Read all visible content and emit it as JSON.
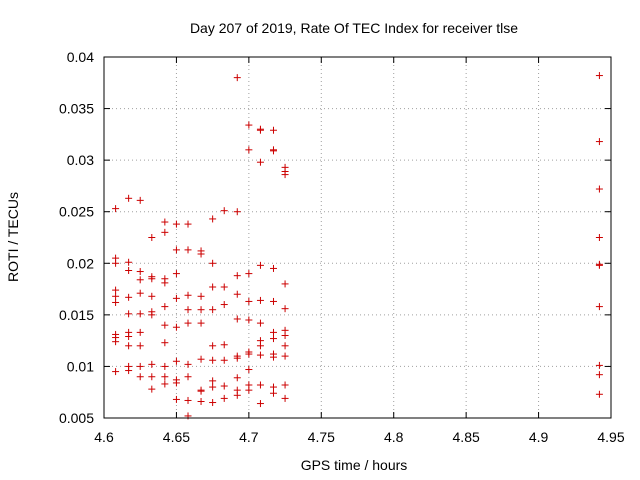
{
  "chart_data": {
    "type": "scatter",
    "title": "Day 207 of 2019, Rate Of TEC Index for receiver tlse",
    "xlabel": "GPS time / hours",
    "ylabel": "ROTI / TECUs",
    "xlim": [
      4.6,
      4.95
    ],
    "ylim": [
      0.005,
      0.04
    ],
    "xticks": [
      4.6,
      4.65,
      4.7,
      4.75,
      4.8,
      4.85,
      4.9,
      4.95
    ],
    "xtick_labels": [
      "4.6",
      "4.65",
      "4.7",
      "4.75",
      "4.8",
      "4.85",
      "4.9",
      "4.95"
    ],
    "yticks": [
      0.005,
      0.01,
      0.015,
      0.02,
      0.025,
      0.03,
      0.035,
      0.04
    ],
    "ytick_labels": [
      "0.005",
      "0.01",
      "0.015",
      "0.02",
      "0.025",
      "0.03",
      "0.035",
      "0.04"
    ],
    "grid": true,
    "marker": "+",
    "marker_color": "#cc0000",
    "series": [
      {
        "name": "ROTI",
        "points": [
          [
            4.608,
            0.0253
          ],
          [
            4.608,
            0.0205
          ],
          [
            4.608,
            0.02
          ],
          [
            4.608,
            0.0174
          ],
          [
            4.608,
            0.0168
          ],
          [
            4.608,
            0.0162
          ],
          [
            4.608,
            0.0131
          ],
          [
            4.608,
            0.0128
          ],
          [
            4.608,
            0.0124
          ],
          [
            4.608,
            0.0095
          ],
          [
            4.617,
            0.0263
          ],
          [
            4.617,
            0.0201
          ],
          [
            4.617,
            0.0193
          ],
          [
            4.617,
            0.0167
          ],
          [
            4.617,
            0.0151
          ],
          [
            4.617,
            0.0133
          ],
          [
            4.617,
            0.0129
          ],
          [
            4.617,
            0.012
          ],
          [
            4.617,
            0.01
          ],
          [
            4.617,
            0.0096
          ],
          [
            4.625,
            0.0261
          ],
          [
            4.625,
            0.0192
          ],
          [
            4.625,
            0.0184
          ],
          [
            4.625,
            0.0171
          ],
          [
            4.625,
            0.0151
          ],
          [
            4.625,
            0.0133
          ],
          [
            4.625,
            0.012
          ],
          [
            4.625,
            0.01
          ],
          [
            4.625,
            0.009
          ],
          [
            4.633,
            0.0225
          ],
          [
            4.633,
            0.0187
          ],
          [
            4.633,
            0.0185
          ],
          [
            4.633,
            0.0168
          ],
          [
            4.633,
            0.0153
          ],
          [
            4.633,
            0.015
          ],
          [
            4.633,
            0.0102
          ],
          [
            4.633,
            0.009
          ],
          [
            4.633,
            0.0078
          ],
          [
            4.642,
            0.024
          ],
          [
            4.642,
            0.023
          ],
          [
            4.642,
            0.0185
          ],
          [
            4.642,
            0.0181
          ],
          [
            4.642,
            0.0158
          ],
          [
            4.642,
            0.014
          ],
          [
            4.642,
            0.0123
          ],
          [
            4.642,
            0.01
          ],
          [
            4.642,
            0.009
          ],
          [
            4.642,
            0.0083
          ],
          [
            4.65,
            0.0238
          ],
          [
            4.65,
            0.0213
          ],
          [
            4.65,
            0.019
          ],
          [
            4.65,
            0.0166
          ],
          [
            4.65,
            0.0138
          ],
          [
            4.65,
            0.0105
          ],
          [
            4.65,
            0.0087
          ],
          [
            4.65,
            0.0084
          ],
          [
            4.65,
            0.0068
          ],
          [
            4.658,
            0.0238
          ],
          [
            4.658,
            0.0213
          ],
          [
            4.658,
            0.0169
          ],
          [
            4.658,
            0.0155
          ],
          [
            4.658,
            0.0142
          ],
          [
            4.658,
            0.0102
          ],
          [
            4.658,
            0.009
          ],
          [
            4.658,
            0.0067
          ],
          [
            4.658,
            0.0052
          ],
          [
            4.667,
            0.0212
          ],
          [
            4.667,
            0.0209
          ],
          [
            4.667,
            0.0168
          ],
          [
            4.667,
            0.0155
          ],
          [
            4.667,
            0.0142
          ],
          [
            4.667,
            0.0107
          ],
          [
            4.667,
            0.0077
          ],
          [
            4.667,
            0.0076
          ],
          [
            4.667,
            0.0066
          ],
          [
            4.675,
            0.0243
          ],
          [
            4.675,
            0.02
          ],
          [
            4.675,
            0.0177
          ],
          [
            4.675,
            0.0155
          ],
          [
            4.675,
            0.012
          ],
          [
            4.675,
            0.0106
          ],
          [
            4.675,
            0.0086
          ],
          [
            4.675,
            0.008
          ],
          [
            4.675,
            0.0065
          ],
          [
            4.683,
            0.0251
          ],
          [
            4.683,
            0.0177
          ],
          [
            4.683,
            0.016
          ],
          [
            4.683,
            0.0121
          ],
          [
            4.683,
            0.0106
          ],
          [
            4.683,
            0.0081
          ],
          [
            4.683,
            0.0069
          ],
          [
            4.692,
            0.038
          ],
          [
            4.692,
            0.025
          ],
          [
            4.692,
            0.0188
          ],
          [
            4.692,
            0.017
          ],
          [
            4.692,
            0.0146
          ],
          [
            4.692,
            0.011
          ],
          [
            4.692,
            0.0108
          ],
          [
            4.692,
            0.0089
          ],
          [
            4.692,
            0.0077
          ],
          [
            4.692,
            0.0072
          ],
          [
            4.7,
            0.0334
          ],
          [
            4.7,
            0.031
          ],
          [
            4.7,
            0.019
          ],
          [
            4.7,
            0.0163
          ],
          [
            4.7,
            0.0145
          ],
          [
            4.7,
            0.0114
          ],
          [
            4.7,
            0.0112
          ],
          [
            4.7,
            0.0097
          ],
          [
            4.7,
            0.0082
          ],
          [
            4.7,
            0.0077
          ],
          [
            4.708,
            0.033
          ],
          [
            4.708,
            0.0329
          ],
          [
            4.708,
            0.0298
          ],
          [
            4.708,
            0.0198
          ],
          [
            4.708,
            0.0164
          ],
          [
            4.708,
            0.0142
          ],
          [
            4.708,
            0.0125
          ],
          [
            4.708,
            0.012
          ],
          [
            4.708,
            0.0111
          ],
          [
            4.708,
            0.0082
          ],
          [
            4.708,
            0.0064
          ],
          [
            4.717,
            0.0329
          ],
          [
            4.717,
            0.031
          ],
          [
            4.717,
            0.0309
          ],
          [
            4.717,
            0.0195
          ],
          [
            4.717,
            0.0163
          ],
          [
            4.717,
            0.0133
          ],
          [
            4.717,
            0.0127
          ],
          [
            4.717,
            0.0112
          ],
          [
            4.717,
            0.0109
          ],
          [
            4.717,
            0.008
          ],
          [
            4.717,
            0.0074
          ],
          [
            4.725,
            0.0293
          ],
          [
            4.725,
            0.0289
          ],
          [
            4.725,
            0.0286
          ],
          [
            4.725,
            0.018
          ],
          [
            4.725,
            0.0156
          ],
          [
            4.725,
            0.0135
          ],
          [
            4.725,
            0.013
          ],
          [
            4.725,
            0.012
          ],
          [
            4.725,
            0.011
          ],
          [
            4.725,
            0.0082
          ],
          [
            4.725,
            0.0069
          ],
          [
            4.942,
            0.0382
          ],
          [
            4.942,
            0.0318
          ],
          [
            4.942,
            0.0272
          ],
          [
            4.942,
            0.0225
          ],
          [
            4.942,
            0.0199
          ],
          [
            4.942,
            0.0198
          ],
          [
            4.942,
            0.0158
          ],
          [
            4.942,
            0.0101
          ],
          [
            4.942,
            0.0092
          ],
          [
            4.942,
            0.0073
          ]
        ]
      }
    ]
  }
}
